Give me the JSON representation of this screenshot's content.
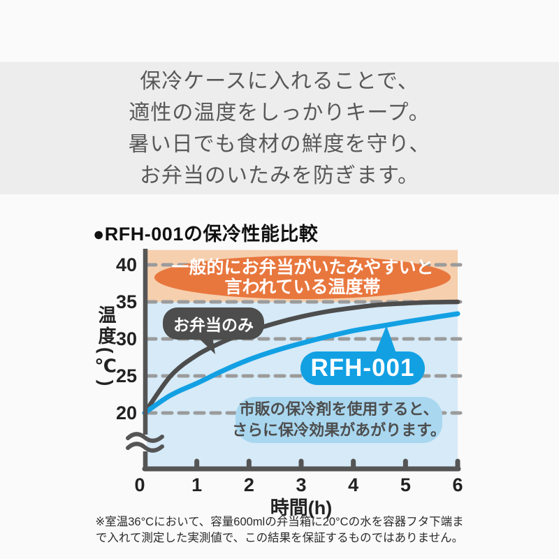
{
  "page": {
    "bg": "#fafafa",
    "band_bg": "#ededed"
  },
  "intro": {
    "lines": [
      "保冷ケースに入れることで、",
      "適性の温度をしっかりキープ。",
      "暑い日でも食材の鮮度を守り、",
      "お弁当のいたみを防ぎます。"
    ]
  },
  "chart": {
    "title": "●RFH-001の保冷性能比較"
  },
  "chart_data": {
    "type": "line",
    "title": "RFH-001の保冷性能比較",
    "xlabel": "時間(h)",
    "ylabel": "温度(℃)",
    "x": [
      0,
      0.5,
      1,
      1.5,
      2,
      2.5,
      3,
      3.5,
      4,
      4.5,
      5,
      5.5,
      6
    ],
    "x_ticks": [
      0,
      1,
      2,
      3,
      4,
      5,
      6
    ],
    "y_ticks": [
      20,
      25,
      30,
      35,
      40
    ],
    "xlim": [
      0,
      6
    ],
    "ylim": [
      20,
      42
    ],
    "axis_break_below": 20,
    "grid": "dashed",
    "legend_position": "on-curve-bubbles",
    "series": [
      {
        "name": "お弁当のみ",
        "color": "#4d4d4d",
        "values": [
          20,
          25.0,
          27.8,
          29.6,
          31.0,
          32.1,
          33.0,
          33.7,
          34.2,
          34.6,
          34.8,
          34.95,
          35.0
        ]
      },
      {
        "name": "RFH-001",
        "color": "#12a0e3",
        "values": [
          20,
          22.4,
          24.0,
          25.7,
          27.2,
          28.4,
          29.4,
          30.3,
          31.1,
          31.7,
          32.3,
          32.85,
          33.4
        ]
      }
    ],
    "danger_zone": {
      "from": 35,
      "to": 42,
      "band_color": "#f6cfae",
      "ellipse_color": "#e8773e",
      "label_lines": [
        "一般的にお弁当がいたみやすいと",
        "言われている温度帯"
      ]
    },
    "note_bubble": {
      "bg": "#a9d7f0",
      "text_color": "#4d4d4d",
      "lines": [
        "市販の保冷剤を使用すると、",
        "さらに保冷効果があがります。"
      ]
    },
    "colors": {
      "plot_bg": "#d6eaf7",
      "grid": "#9b9b9b",
      "axis": "#555555",
      "tick_label": "#222222"
    }
  },
  "footnote": {
    "lines": [
      "※室温36°Cにおいて、容量600mlの弁当箱に20°Cの水を容器フタ下端ま",
      "で入れて測定した実測値で、この結果を保証するものではありません。"
    ]
  }
}
